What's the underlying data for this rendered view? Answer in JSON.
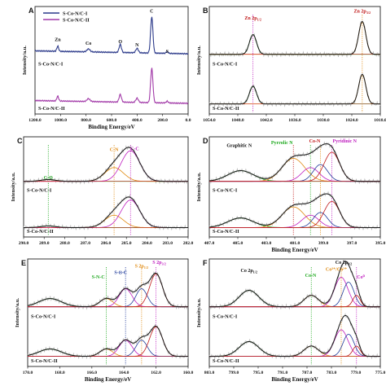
{
  "panels": [
    {
      "letter": "A",
      "type": "line",
      "ylabel": "Intensity/a.u.",
      "xlabel": "Binding Energy/eV",
      "xlim": [
        1200,
        0
      ],
      "xticks": [
        1200,
        1000,
        800,
        600,
        400,
        200,
        0
      ],
      "xtick_labels": [
        "1200.0",
        "1000.0",
        "800.0",
        "600.0",
        "400.0",
        "200.0",
        "0.0"
      ],
      "legend": [
        "S-Co-N/C-I",
        "S-Co-N/C-II"
      ],
      "legend_colors": [
        "#2c3a8a",
        "#a23aa8"
      ],
      "series_labels": [
        "S-Co-N/C-I",
        "S-Co-N/C-II"
      ],
      "annotations": [
        {
          "text": "Zn",
          "x": 1022,
          "level": 0.42
        },
        {
          "text": "Co",
          "x": 781,
          "level": 0.35
        },
        {
          "text": "O",
          "x": 532,
          "level": 0.38
        },
        {
          "text": "N",
          "x": 400,
          "level": 0.32
        },
        {
          "text": "C",
          "x": 285,
          "level": 0.95
        },
        {
          "text": "S",
          "x": 164,
          "level": 0.2
        }
      ]
    },
    {
      "letter": "B",
      "type": "line",
      "ylabel": "Intensity/a.u.",
      "xlabel": "",
      "xlim": [
        1054,
        1018
      ],
      "xticks": [
        1054,
        1048,
        1042,
        1036,
        1030,
        1024,
        1018
      ],
      "xtick_labels": [
        "1054.0",
        "1048.0",
        "1042.0",
        "1036.0",
        "1030.0",
        "1024.0",
        "1018.0"
      ],
      "series_labels": [
        "S-Co-N/C-I",
        "S-Co-N/C-II"
      ],
      "vlines": [
        {
          "x": 1044.8,
          "color": "#c020c0"
        },
        {
          "x": 1021.8,
          "color": "#e08a10"
        }
      ],
      "annotations": [
        {
          "text": "Zn 2p",
          "sub": "1/2",
          "x": 1044.8,
          "level": 0.82,
          "color": "#c01818"
        },
        {
          "text": "Zn 2p",
          "sub": "3/2",
          "x": 1021.8,
          "level": 0.95,
          "color": "#c01818"
        }
      ]
    },
    {
      "letter": "C",
      "type": "line",
      "ylabel": "Intensity/a.u.",
      "xlabel": "",
      "xlim": [
        290,
        282
      ],
      "xticks": [
        290,
        289,
        288,
        287,
        286,
        285,
        284,
        283,
        282
      ],
      "xtick_labels": [
        "290.0",
        "289.0",
        "288.0",
        "287.0",
        "286.0",
        "285.0",
        "284.0",
        "283.0",
        "282.0"
      ],
      "series_labels": [
        "S-Co-N/C-I",
        "S-Co-N/C-II"
      ],
      "vlines": [
        {
          "x": 288.8,
          "color": "#22aa22"
        },
        {
          "x": 285.6,
          "color": "#e08a10"
        },
        {
          "x": 284.8,
          "color": "#c020c0"
        }
      ],
      "annotations": [
        {
          "text": "C-N",
          "x": 285.6,
          "level": 0.78,
          "color": "#e08a10"
        },
        {
          "text": "C-C",
          "x": 284.6,
          "level": 0.8,
          "color": "#c020c0"
        },
        {
          "text": "C-O",
          "x": 288.8,
          "level": 0.22,
          "color": "#22aa22"
        }
      ]
    },
    {
      "letter": "D",
      "type": "line",
      "ylabel": "Intensity/a.u.",
      "xlabel": "Binding Energy/eV",
      "xlim": [
        407,
        395
      ],
      "xticks": [
        407,
        405,
        403,
        401,
        399,
        397,
        395
      ],
      "xtick_labels": [
        "407.0",
        "405.0",
        "403.0",
        "401.0",
        "399.0",
        "397.0",
        "395.0"
      ],
      "series_labels": [
        "S-Co-N/C-I",
        "S-Co-N/C-II"
      ],
      "vlines": [
        {
          "x": 401.1,
          "color": "#c01818"
        },
        {
          "x": 399.9,
          "color": "#22aa22"
        },
        {
          "x": 399.2,
          "color": "#e08a10"
        },
        {
          "x": 398.4,
          "color": "#c020c0"
        }
      ],
      "annotations": [
        {
          "text": "Graphitic N",
          "x": 404.9,
          "level": 0.86,
          "color": "#111111"
        },
        {
          "text": "Pyrrolic N",
          "x": 401.9,
          "level": 0.92,
          "color": "#22aa22"
        },
        {
          "text": "Co-N",
          "x": 399.6,
          "level": 0.95,
          "color": "#c01818"
        },
        {
          "text": "Pyridinic N",
          "x": 397.5,
          "level": 0.95,
          "color": "#c020c0"
        }
      ]
    },
    {
      "letter": "E",
      "type": "line",
      "ylabel": "Intensity/a.u.",
      "xlabel": "Binding Energy/eV",
      "xlim": [
        170,
        160
      ],
      "xticks": [
        170,
        168,
        166,
        164,
        162,
        160
      ],
      "xtick_labels": [
        "170.0",
        "168.0",
        "166.0",
        "164.0",
        "162.0",
        "160.0"
      ],
      "series_labels": [
        "S-Co-N/C-I",
        "S-Co-N/C-II"
      ],
      "vlines": [
        {
          "x": 165.1,
          "color": "#22aa22"
        },
        {
          "x": 163.9,
          "color": "#1f3a9a"
        },
        {
          "x": 162.9,
          "color": "#e08a10"
        },
        {
          "x": 162.0,
          "color": "#c020c0"
        }
      ],
      "annotations": [
        {
          "text": "S-N-C",
          "x": 165.6,
          "level": 0.7,
          "color": "#22aa22"
        },
        {
          "text": "S-Ȣ-C",
          "x": 164.2,
          "level": 0.78,
          "color": "#1f3a9a"
        },
        {
          "text": "S 2p",
          "sub": "1/2",
          "x": 162.9,
          "level": 0.9,
          "color": "#e08a10"
        },
        {
          "text": "S 2p",
          "sub": "3/2",
          "x": 161.8,
          "level": 0.97,
          "color": "#c020c0"
        }
      ]
    },
    {
      "letter": "F",
      "type": "line",
      "ylabel": "Intensity/a.u.",
      "xlabel": "Binding Energy/eV",
      "xlim": [
        803,
        775
      ],
      "xticks": [
        803,
        799,
        795,
        791,
        787,
        783,
        779,
        775
      ],
      "xtick_labels": [
        "803.0",
        "799.0",
        "795.0",
        "791.0",
        "787.0",
        "783.0",
        "779.0",
        "775.0"
      ],
      "series_labels": [
        "S-Co-N/C-I",
        "S-Co-N/C-II"
      ],
      "vlines": [
        {
          "x": 786.3,
          "color": "#22aa22"
        },
        {
          "x": 781.4,
          "color": "#e08a10"
        },
        {
          "x": 778.9,
          "color": "#c020c0"
        }
      ],
      "annotations": [
        {
          "text": "Co 2p",
          "sub": "1/2",
          "x": 796.5,
          "level": 0.82,
          "color": "#111111"
        },
        {
          "text": "Co 2p",
          "sub": "3/2",
          "x": 781.0,
          "level": 0.97,
          "color": "#111111"
        },
        {
          "text": "Co-N",
          "x": 786.4,
          "level": 0.73,
          "color": "#22aa22"
        },
        {
          "text": "Co³⁺/Co²⁺",
          "x": 782.2,
          "level": 0.84,
          "color": "#e08a10"
        },
        {
          "text": "Co⁰",
          "x": 778.2,
          "level": 0.7,
          "color": "#c020c0"
        }
      ]
    }
  ]
}
